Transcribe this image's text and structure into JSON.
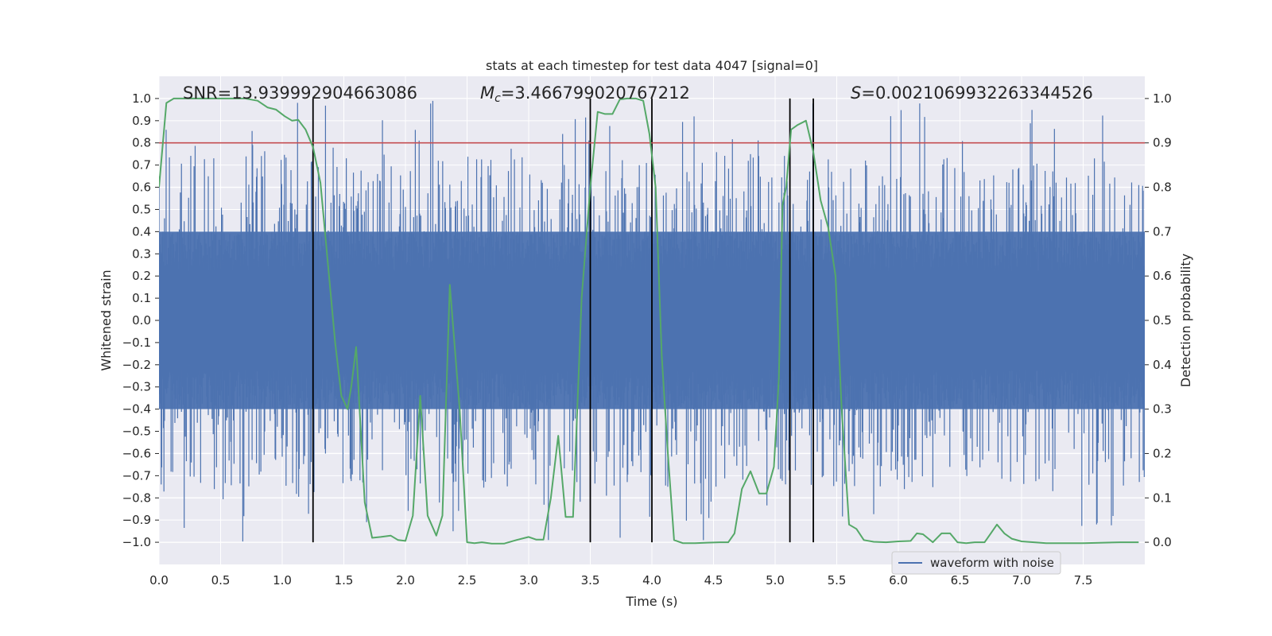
{
  "chart_data": {
    "type": "line",
    "title": "stats at each timestep for test data 4047 [signal=0]",
    "xlabel": "Time (s)",
    "ylabel_left": "Whitened strain",
    "ylabel_right": "Detection probability",
    "xlim": [
      0.0,
      8.0
    ],
    "ylim_left": [
      -1.1,
      1.1
    ],
    "ylim_right": [
      -0.05,
      1.05
    ],
    "xticks": [
      "0.0",
      "0.5",
      "1.0",
      "1.5",
      "2.0",
      "2.5",
      "3.0",
      "3.5",
      "4.0",
      "4.5",
      "5.0",
      "5.5",
      "6.0",
      "6.5",
      "7.0",
      "7.5"
    ],
    "yticks_left": [
      "1.0",
      "0.9",
      "0.8",
      "0.7",
      "0.6",
      "0.5",
      "0.4",
      "0.3",
      "0.2",
      "0.1",
      "0.0",
      "−0.1",
      "−0.2",
      "−0.3",
      "−0.4",
      "−0.5",
      "−0.6",
      "−0.7",
      "−0.8",
      "−0.9",
      "−1.0"
    ],
    "yticks_right": [
      "1.0",
      "0.9",
      "0.8",
      "0.7",
      "0.6",
      "0.5",
      "0.4",
      "0.3",
      "0.2",
      "0.1",
      "0.0"
    ],
    "stats": {
      "snr_label": "SNR",
      "snr_value": "=13.939992904663086",
      "mc_symbol": "M",
      "mc_sub": "c",
      "mc_value": "=3.466799020767212",
      "s_symbol": "S",
      "s_value": "=0.0021069932263344526"
    },
    "threshold": {
      "value": 0.9,
      "axis": "right",
      "color": "#c44e52"
    },
    "vertical_lines": [
      1.25,
      3.5,
      4.0,
      5.12,
      5.31
    ],
    "waveform": {
      "name": "waveform with noise",
      "color": "#4c72b0",
      "description": "dense whitened noise, core amplitude about ±0.4, spikes up to about ±1.0",
      "core_amplitude": 0.4,
      "peak_amplitude": 1.0
    },
    "detection_probability": {
      "name": "Detection probability",
      "color": "#55a868",
      "x": [
        0.0,
        0.06,
        0.12,
        0.2,
        0.3,
        0.4,
        0.5,
        0.6,
        0.7,
        0.8,
        0.88,
        0.95,
        1.02,
        1.08,
        1.13,
        1.19,
        1.25,
        1.31,
        1.38,
        1.43,
        1.48,
        1.53,
        1.56,
        1.6,
        1.67,
        1.73,
        1.8,
        1.88,
        1.94,
        2.0,
        2.06,
        2.12,
        2.18,
        2.25,
        2.3,
        2.36,
        2.44,
        2.5,
        2.56,
        2.62,
        2.7,
        2.8,
        2.9,
        3.0,
        3.06,
        3.12,
        3.18,
        3.24,
        3.3,
        3.36,
        3.43,
        3.5,
        3.56,
        3.62,
        3.68,
        3.74,
        3.8,
        3.87,
        3.93,
        3.98,
        4.03,
        4.08,
        4.13,
        4.18,
        4.25,
        4.35,
        4.45,
        4.55,
        4.62,
        4.67,
        4.73,
        4.8,
        4.87,
        4.93,
        4.99,
        5.03,
        5.06,
        5.09,
        5.13,
        5.18,
        5.25,
        5.31,
        5.37,
        5.43,
        5.49,
        5.54,
        5.6,
        5.66,
        5.72,
        5.8,
        5.9,
        6.0,
        6.1,
        6.15,
        6.2,
        6.28,
        6.35,
        6.42,
        6.48,
        6.55,
        6.62,
        6.7,
        6.75,
        6.8,
        6.86,
        6.92,
        7.0,
        7.2,
        7.5,
        7.8,
        7.95
      ],
      "y": [
        0.8,
        0.99,
        1.0,
        1.0,
        1.0,
        1.0,
        1.0,
        1.0,
        1.0,
        0.995,
        0.98,
        0.975,
        0.96,
        0.95,
        0.952,
        0.93,
        0.89,
        0.81,
        0.6,
        0.45,
        0.33,
        0.3,
        0.35,
        0.44,
        0.09,
        0.01,
        0.012,
        0.015,
        0.005,
        0.003,
        0.06,
        0.33,
        0.06,
        0.015,
        0.06,
        0.58,
        0.3,
        0.0,
        -0.002,
        0.0,
        -0.003,
        -0.003,
        0.005,
        0.012,
        0.006,
        0.006,
        0.1,
        0.24,
        0.057,
        0.057,
        0.55,
        0.8,
        0.97,
        0.965,
        0.965,
        0.998,
        1.0,
        1.0,
        0.995,
        0.92,
        0.8,
        0.42,
        0.2,
        0.005,
        -0.002,
        -0.002,
        -0.001,
        0.0,
        0.0,
        0.02,
        0.12,
        0.16,
        0.11,
        0.11,
        0.17,
        0.37,
        0.76,
        0.8,
        0.93,
        0.94,
        0.95,
        0.88,
        0.77,
        0.71,
        0.6,
        0.3,
        0.04,
        0.03,
        0.005,
        0.001,
        0.0,
        0.002,
        0.003,
        0.02,
        0.018,
        0.0,
        0.02,
        0.02,
        0.0,
        -0.002,
        0.0,
        0.0,
        0.02,
        0.04,
        0.02,
        0.008,
        0.002,
        -0.002,
        -0.002,
        0.0,
        0.0
      ]
    }
  }
}
